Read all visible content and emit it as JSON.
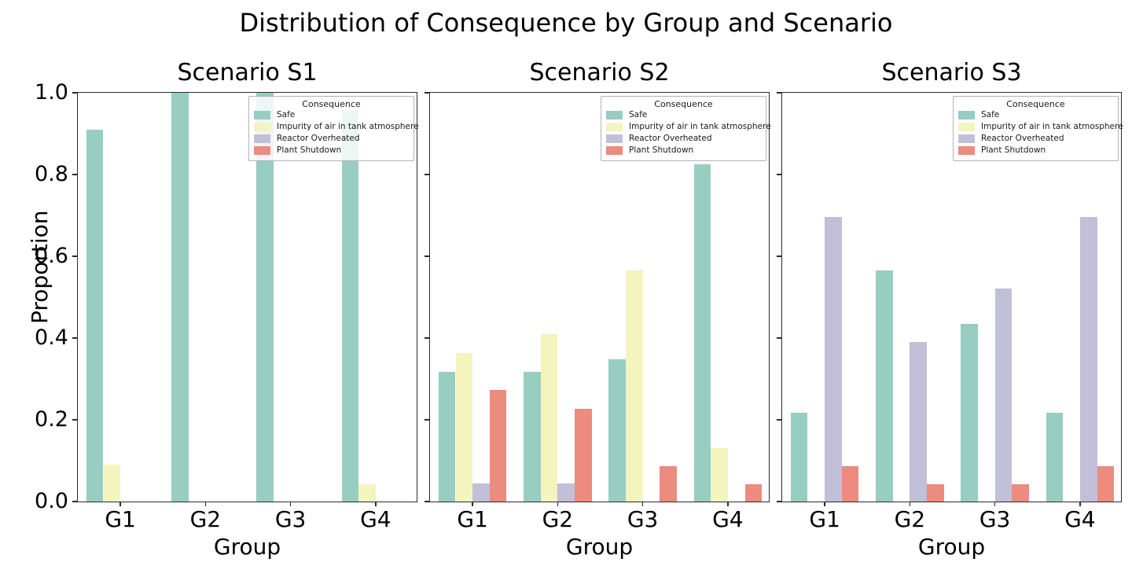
{
  "figure": {
    "title": "Distribution of Consequence by Group and Scenario"
  },
  "legend": {
    "title": "Consequence",
    "entries": [
      "Safe",
      "Impurity of air in tank atmosphere",
      "Reactor Overheated",
      "Plant Shutdown"
    ]
  },
  "colors": {
    "safe": "#98cdc1",
    "impurity": "#f4f4be",
    "reactor_overheated": "#c2bfd8",
    "plant_shutdown": "#ec8b7e",
    "spine": "#2b2b2b",
    "text": "#000000"
  },
  "chart_data": [
    {
      "type": "bar",
      "title": "Scenario S1",
      "xlabel": "Group",
      "ylabel": "Proportion",
      "categories": [
        "G1",
        "G2",
        "G3",
        "G4"
      ],
      "ylim": [
        0.0,
        1.0
      ],
      "yticks": [
        0.0,
        0.2,
        0.4,
        0.6,
        0.8,
        1.0
      ],
      "grid": false,
      "show_ytick_labels": true,
      "legend_title": "Consequence",
      "legend_position": "upper right",
      "series": [
        {
          "name": "Safe",
          "color": "#98cdc1",
          "values": [
            0.909,
            1.0,
            1.0,
            0.957
          ]
        },
        {
          "name": "Impurity of air in tank atmosphere",
          "color": "#f4f4be",
          "values": [
            0.091,
            0,
            0,
            0.043
          ]
        },
        {
          "name": "Reactor Overheated",
          "color": "#c2bfd8",
          "values": [
            0,
            0,
            0,
            0
          ]
        },
        {
          "name": "Plant Shutdown",
          "color": "#ec8b7e",
          "values": [
            0,
            0,
            0,
            0
          ]
        }
      ]
    },
    {
      "type": "bar",
      "title": "Scenario S2",
      "xlabel": "Group",
      "ylabel": "",
      "categories": [
        "G1",
        "G2",
        "G3",
        "G4"
      ],
      "ylim": [
        0.0,
        1.0
      ],
      "yticks": [
        0.0,
        0.2,
        0.4,
        0.6,
        0.8,
        1.0
      ],
      "grid": false,
      "show_ytick_labels": false,
      "legend_title": "Consequence",
      "legend_position": "upper right",
      "series": [
        {
          "name": "Safe",
          "color": "#98cdc1",
          "values": [
            0.318,
            0.318,
            0.348,
            0.826
          ]
        },
        {
          "name": "Impurity of air in tank atmosphere",
          "color": "#f4f4be",
          "values": [
            0.364,
            0.409,
            0.565,
            0.13
          ]
        },
        {
          "name": "Reactor Overheated",
          "color": "#c2bfd8",
          "values": [
            0.045,
            0.045,
            0,
            0
          ]
        },
        {
          "name": "Plant Shutdown",
          "color": "#ec8b7e",
          "values": [
            0.273,
            0.227,
            0.087,
            0.043
          ]
        }
      ]
    },
    {
      "type": "bar",
      "title": "Scenario S3",
      "xlabel": "Group",
      "ylabel": "",
      "categories": [
        "G1",
        "G2",
        "G3",
        "G4"
      ],
      "ylim": [
        0.0,
        1.0
      ],
      "yticks": [
        0.0,
        0.2,
        0.4,
        0.6,
        0.8,
        1.0
      ],
      "grid": false,
      "show_ytick_labels": false,
      "legend_title": "Consequence",
      "legend_position": "upper right",
      "series": [
        {
          "name": "Safe",
          "color": "#98cdc1",
          "values": [
            0.217,
            0.565,
            0.435,
            0.217
          ]
        },
        {
          "name": "Impurity of air in tank atmosphere",
          "color": "#f4f4be",
          "values": [
            0,
            0,
            0,
            0
          ]
        },
        {
          "name": "Reactor Overheated",
          "color": "#c2bfd8",
          "values": [
            0.696,
            0.391,
            0.522,
            0.696
          ]
        },
        {
          "name": "Plant Shutdown",
          "color": "#ec8b7e",
          "values": [
            0.087,
            0.043,
            0.043,
            0.087
          ]
        }
      ]
    }
  ]
}
